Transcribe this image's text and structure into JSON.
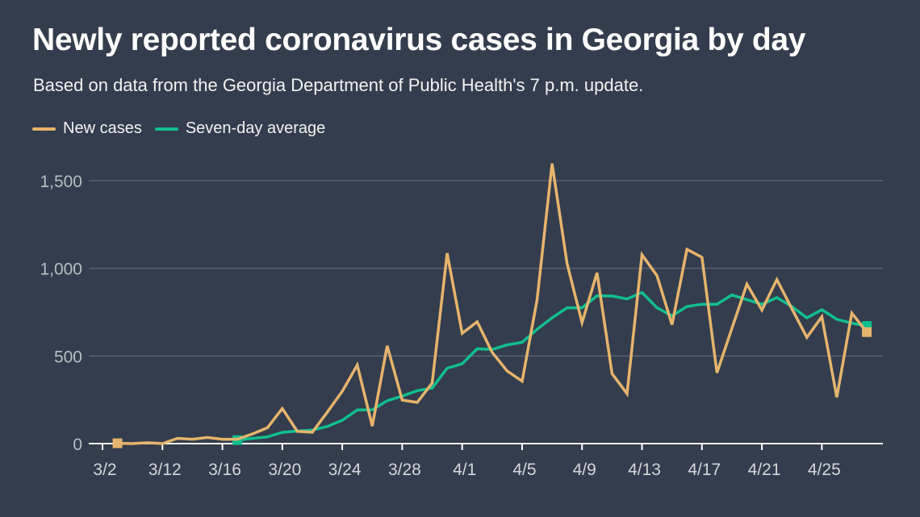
{
  "title": "Newly reported coronavirus cases in Georgia by day",
  "subtitle": "Based on data from the Georgia Department of Public Health's 7 p.m. update.",
  "colors": {
    "background": "#333d4d",
    "new_cases": "#e6b46d",
    "seven_day_average": "#12bf8e",
    "grid": "#5b6372",
    "axis": "#ffffff"
  },
  "chart_data": {
    "type": "line",
    "title": "Newly reported coronavirus cases in Georgia by day",
    "xlabel": "",
    "ylabel": "",
    "ylim": [
      0,
      1500
    ],
    "y_ticks": [
      {
        "value": 0,
        "label": "0"
      },
      {
        "value": 500,
        "label": "500"
      },
      {
        "value": 1000,
        "label": "1,000"
      },
      {
        "value": 1500,
        "label": "1,500"
      }
    ],
    "x_ticks": [
      "3/2",
      "3/12",
      "3/16",
      "3/20",
      "3/24",
      "3/28",
      "4/1",
      "4/5",
      "4/9",
      "4/13",
      "4/17",
      "4/21",
      "4/25"
    ],
    "grid": true,
    "legend": "top-left",
    "axis_start": "3/2",
    "x": [
      "3/3",
      "3/10",
      "3/11",
      "3/12",
      "3/13",
      "3/14",
      "3/15",
      "3/16",
      "3/17",
      "3/18",
      "3/19",
      "3/20",
      "3/21",
      "3/22",
      "3/23",
      "3/24",
      "3/25",
      "3/26",
      "3/27",
      "3/28",
      "3/29",
      "3/30",
      "3/31",
      "4/1",
      "4/2",
      "4/3",
      "4/4",
      "4/5",
      "4/6",
      "4/7",
      "4/8",
      "4/9",
      "4/10",
      "4/11",
      "4/12",
      "4/13",
      "4/14",
      "4/15",
      "4/16",
      "4/17",
      "4/18",
      "4/19",
      "4/20",
      "4/21",
      "4/22",
      "4/23",
      "4/24",
      "4/25",
      "4/26",
      "4/27",
      "4/28"
    ],
    "series": [
      {
        "name": "New cases",
        "values": [
          2,
          0,
          5,
          0,
          30,
          25,
          35,
          25,
          25,
          55,
          90,
          200,
          70,
          65,
          180,
          298,
          448,
          100,
          558,
          248,
          235,
          345,
          1086,
          629,
          695,
          521,
          414,
          356,
          820,
          1598,
          1027,
          690,
          974,
          399,
          285,
          1077,
          958,
          678,
          1108,
          1063,
          404,
          657,
          910,
          762,
          936,
          770,
          606,
          724,
          264,
          744,
          636
        ]
      },
      {
        "name": "Seven-day average",
        "values": [
          null,
          null,
          null,
          null,
          null,
          null,
          null,
          null,
          20,
          30,
          38,
          64,
          72,
          77,
          98,
          133,
          192,
          193,
          245,
          271,
          302,
          317,
          430,
          455,
          541,
          537,
          563,
          578,
          652,
          718,
          775,
          775,
          843,
          842,
          825,
          862,
          775,
          729,
          782,
          795,
          795,
          848,
          821,
          795,
          833,
          782,
          718,
          764,
          709,
          687,
          671
        ]
      }
    ]
  }
}
